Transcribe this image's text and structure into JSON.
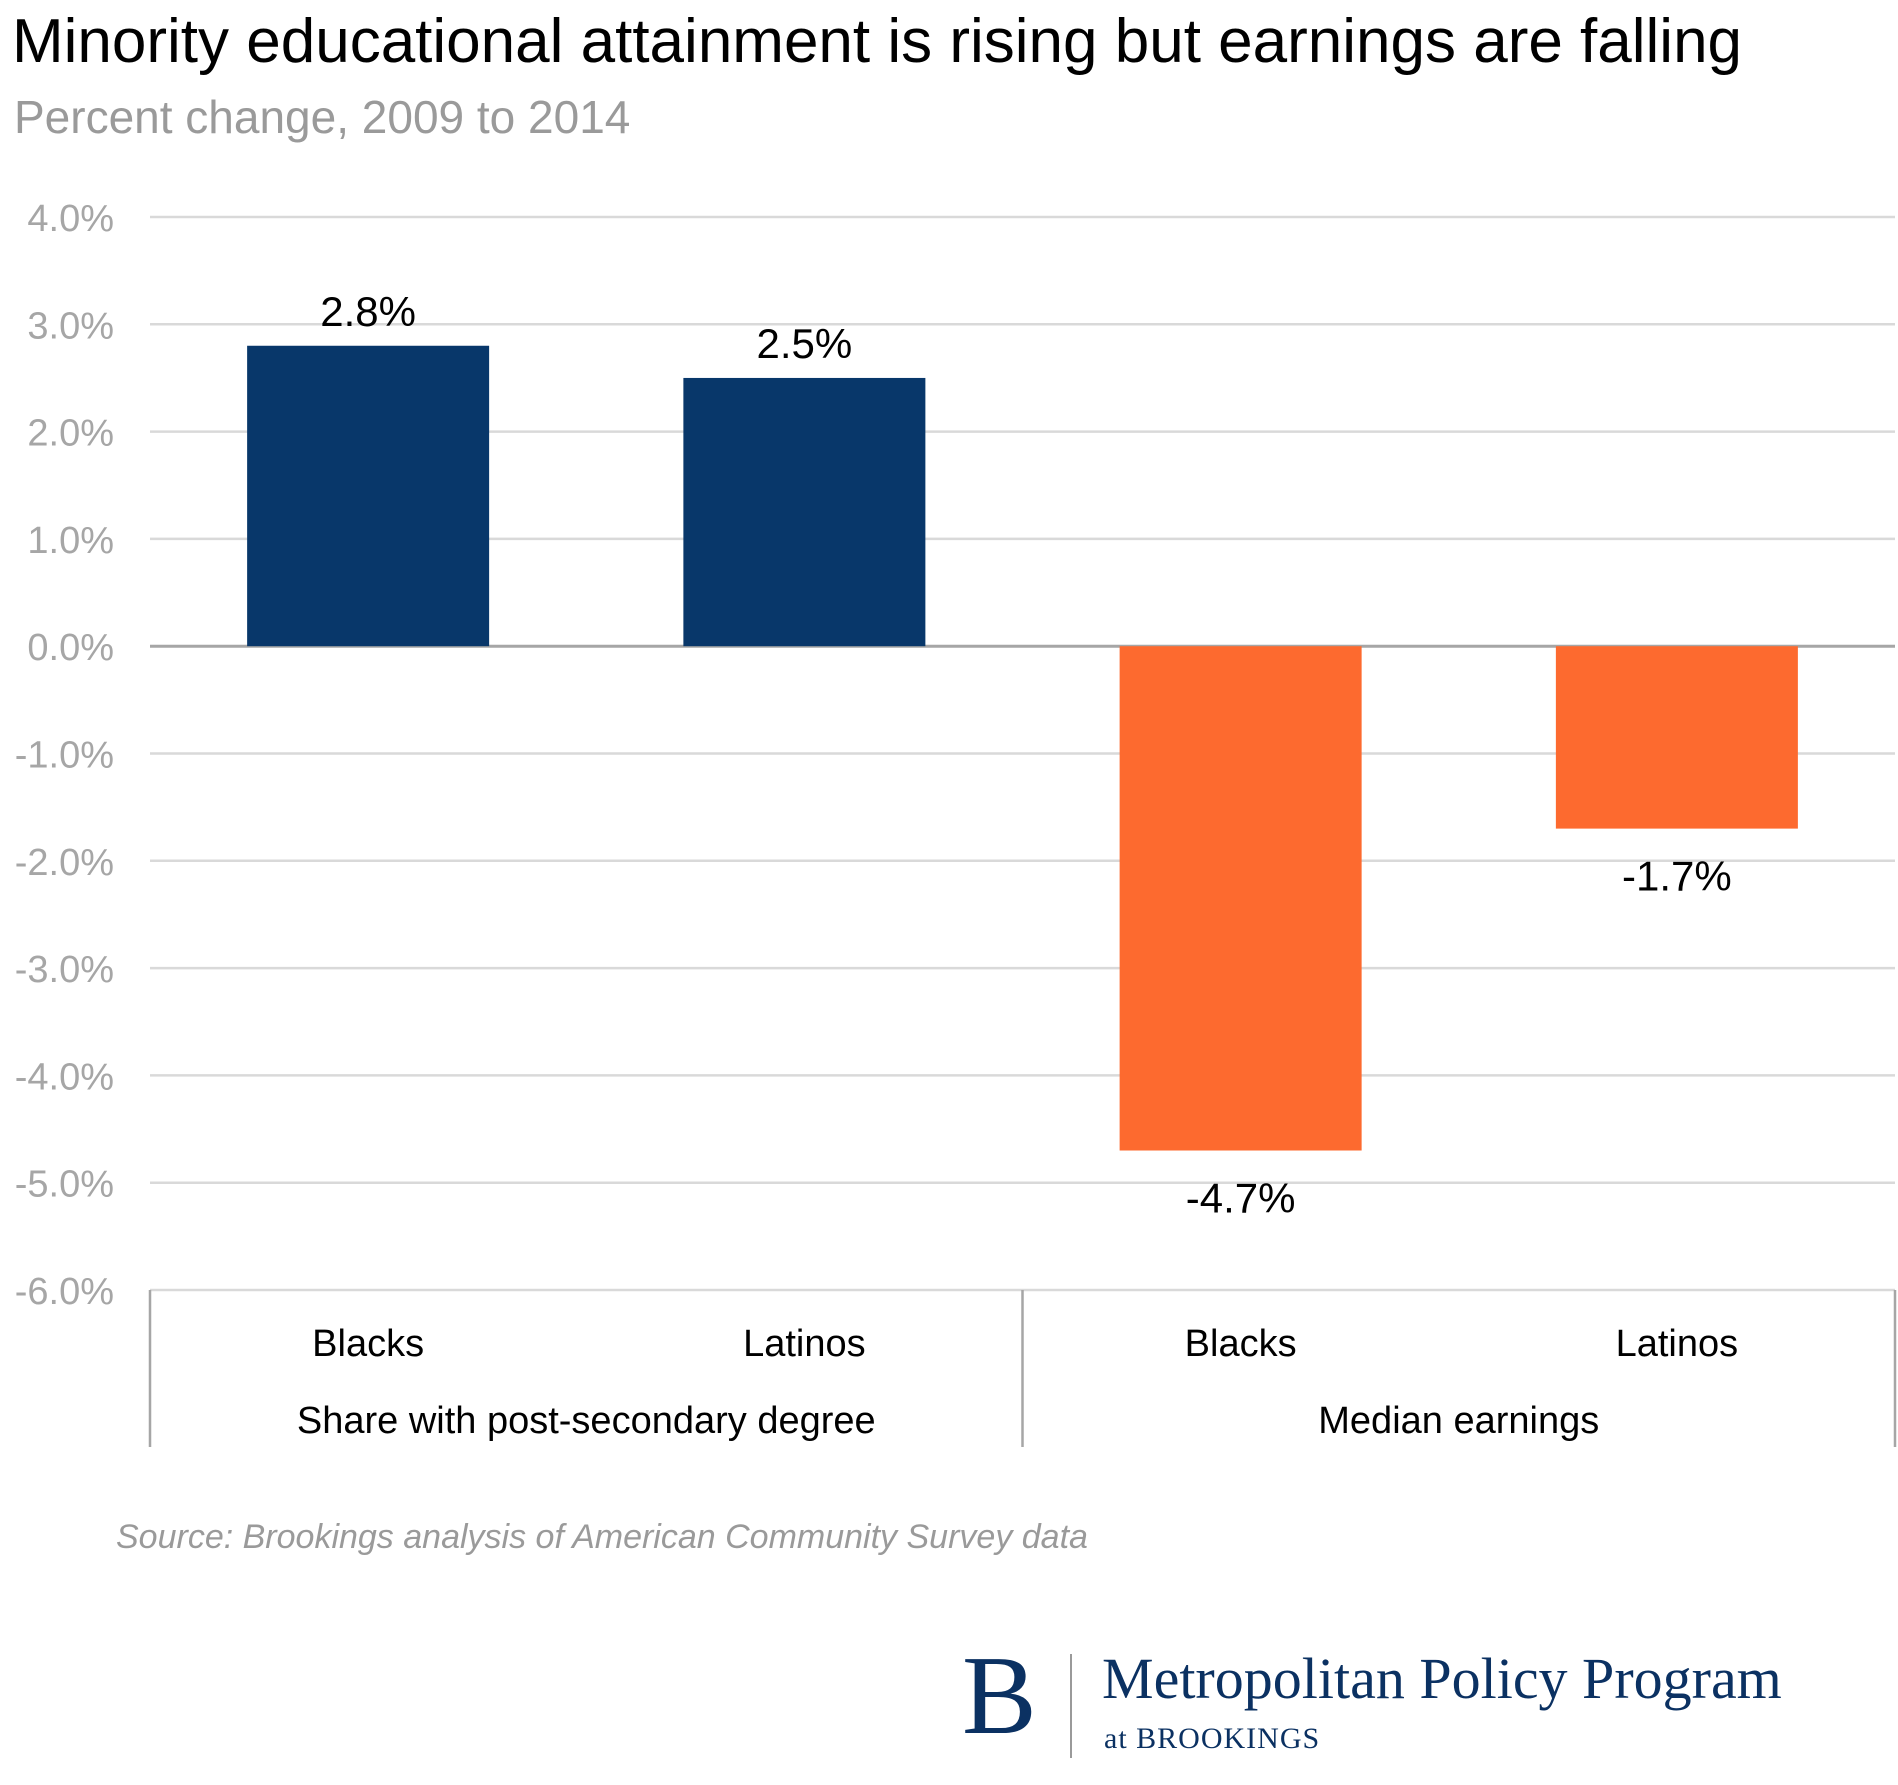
{
  "chart_data": {
    "type": "bar",
    "title": "Minority educational attainment is rising but earnings are falling",
    "subtitle": "Percent change, 2009 to 2014",
    "categories": [
      "Blacks",
      "Latinos",
      "Blacks",
      "Latinos"
    ],
    "groups": [
      {
        "label": "Share with post-secondary degree",
        "span": [
          0,
          1
        ]
      },
      {
        "label": "Median earnings",
        "span": [
          2,
          3
        ]
      }
    ],
    "values": [
      2.8,
      2.5,
      -4.7,
      -1.7
    ],
    "data_labels": [
      "2.8%",
      "2.5%",
      "-4.7%",
      "-1.7%"
    ],
    "bar_colors": [
      "#08376a",
      "#08376a",
      "#fd6a2f",
      "#fd6a2f"
    ],
    "ylim": [
      -6.0,
      4.0
    ],
    "yticks": [
      4.0,
      3.0,
      2.0,
      1.0,
      0.0,
      -1.0,
      -2.0,
      -3.0,
      -4.0,
      -5.0,
      -6.0
    ],
    "ytick_labels": [
      "4.0%",
      "3.0%",
      "2.0%",
      "1.0%",
      "0.0%",
      "-1.0%",
      "-2.0%",
      "-3.0%",
      "-4.0%",
      "-5.0%",
      "-6.0%"
    ],
    "grid": true,
    "xlabel": "",
    "ylabel": ""
  },
  "source": "Source: Brookings analysis of American Community Survey data",
  "logo": {
    "letter": "B",
    "name": "Metropolitan Policy Program",
    "sub": "at BROOKINGS"
  },
  "colors": {
    "gridline": "#d9d9d9",
    "zero_line": "#a6a6a6",
    "tick_label": "#a6a6a6",
    "brand": "#0b3162"
  }
}
